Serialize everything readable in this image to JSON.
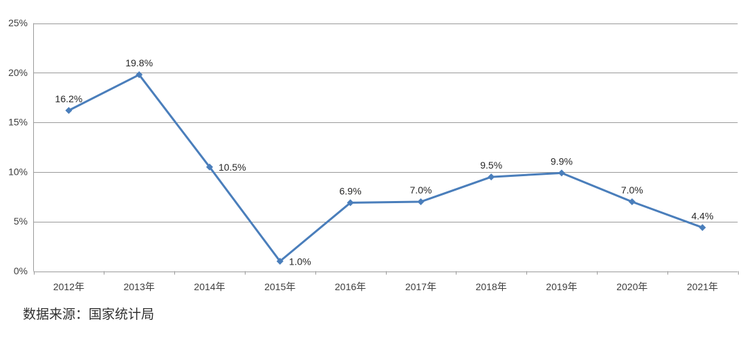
{
  "source_note": "数据来源：国家统计局",
  "colors": {
    "line": "#4a7ebb",
    "marker": "#4a7ebb",
    "grid": "#9b9b9b",
    "axis": "#9b9b9b",
    "axis_text": "#3d3d3d",
    "label_text": "#262626",
    "source_text": "#303030",
    "background": "#ffffff"
  },
  "chart_data": {
    "type": "line",
    "title": "",
    "xlabel": "",
    "ylabel": "",
    "categories": [
      "2012年",
      "2013年",
      "2014年",
      "2015年",
      "2016年",
      "2017年",
      "2018年",
      "2019年",
      "2020年",
      "2021年"
    ],
    "values": [
      16.2,
      19.8,
      10.5,
      1.0,
      6.9,
      7.0,
      9.5,
      9.9,
      7.0,
      4.4
    ],
    "point_labels": [
      "16.2%",
      "19.8%",
      "10.5%",
      "1.0%",
      "6.9%",
      "7.0%",
      "9.5%",
      "9.9%",
      "7.0%",
      "4.4%"
    ],
    "label_positions": [
      "above",
      "above",
      "right",
      "right",
      "above",
      "above",
      "above",
      "above",
      "above",
      "above"
    ],
    "ylim": [
      0,
      25
    ],
    "yticks": [
      0,
      5,
      10,
      15,
      20,
      25
    ],
    "ytick_labels": [
      "0%",
      "5%",
      "10%",
      "15%",
      "20%",
      "25%"
    ],
    "grid": "horizontal",
    "legend": "none",
    "marker": "diamond"
  }
}
